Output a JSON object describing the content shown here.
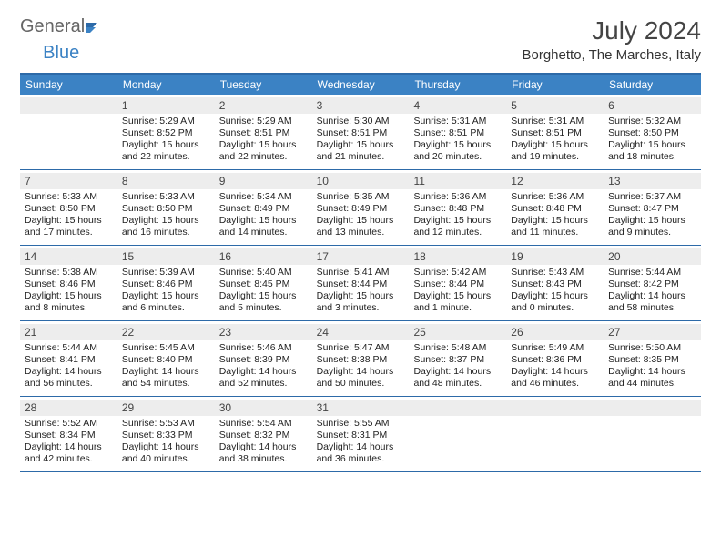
{
  "branding": {
    "part1": "General",
    "part2": "Blue"
  },
  "title": "July 2024",
  "location": "Borghetto, The Marches, Italy",
  "colors": {
    "header_bg": "#3b82c4",
    "header_text": "#ffffff",
    "band_bg": "#ededed",
    "rule": "#2d6aa8",
    "body_text": "#222222",
    "page_bg": "#ffffff"
  },
  "dow": [
    "Sunday",
    "Monday",
    "Tuesday",
    "Wednesday",
    "Thursday",
    "Friday",
    "Saturday"
  ],
  "weeks": [
    [
      {
        "n": "",
        "sr": "",
        "ss": "",
        "dl": ""
      },
      {
        "n": "1",
        "sr": "Sunrise: 5:29 AM",
        "ss": "Sunset: 8:52 PM",
        "dl": "Daylight: 15 hours and 22 minutes."
      },
      {
        "n": "2",
        "sr": "Sunrise: 5:29 AM",
        "ss": "Sunset: 8:51 PM",
        "dl": "Daylight: 15 hours and 22 minutes."
      },
      {
        "n": "3",
        "sr": "Sunrise: 5:30 AM",
        "ss": "Sunset: 8:51 PM",
        "dl": "Daylight: 15 hours and 21 minutes."
      },
      {
        "n": "4",
        "sr": "Sunrise: 5:31 AM",
        "ss": "Sunset: 8:51 PM",
        "dl": "Daylight: 15 hours and 20 minutes."
      },
      {
        "n": "5",
        "sr": "Sunrise: 5:31 AM",
        "ss": "Sunset: 8:51 PM",
        "dl": "Daylight: 15 hours and 19 minutes."
      },
      {
        "n": "6",
        "sr": "Sunrise: 5:32 AM",
        "ss": "Sunset: 8:50 PM",
        "dl": "Daylight: 15 hours and 18 minutes."
      }
    ],
    [
      {
        "n": "7",
        "sr": "Sunrise: 5:33 AM",
        "ss": "Sunset: 8:50 PM",
        "dl": "Daylight: 15 hours and 17 minutes."
      },
      {
        "n": "8",
        "sr": "Sunrise: 5:33 AM",
        "ss": "Sunset: 8:50 PM",
        "dl": "Daylight: 15 hours and 16 minutes."
      },
      {
        "n": "9",
        "sr": "Sunrise: 5:34 AM",
        "ss": "Sunset: 8:49 PM",
        "dl": "Daylight: 15 hours and 14 minutes."
      },
      {
        "n": "10",
        "sr": "Sunrise: 5:35 AM",
        "ss": "Sunset: 8:49 PM",
        "dl": "Daylight: 15 hours and 13 minutes."
      },
      {
        "n": "11",
        "sr": "Sunrise: 5:36 AM",
        "ss": "Sunset: 8:48 PM",
        "dl": "Daylight: 15 hours and 12 minutes."
      },
      {
        "n": "12",
        "sr": "Sunrise: 5:36 AM",
        "ss": "Sunset: 8:48 PM",
        "dl": "Daylight: 15 hours and 11 minutes."
      },
      {
        "n": "13",
        "sr": "Sunrise: 5:37 AM",
        "ss": "Sunset: 8:47 PM",
        "dl": "Daylight: 15 hours and 9 minutes."
      }
    ],
    [
      {
        "n": "14",
        "sr": "Sunrise: 5:38 AM",
        "ss": "Sunset: 8:46 PM",
        "dl": "Daylight: 15 hours and 8 minutes."
      },
      {
        "n": "15",
        "sr": "Sunrise: 5:39 AM",
        "ss": "Sunset: 8:46 PM",
        "dl": "Daylight: 15 hours and 6 minutes."
      },
      {
        "n": "16",
        "sr": "Sunrise: 5:40 AM",
        "ss": "Sunset: 8:45 PM",
        "dl": "Daylight: 15 hours and 5 minutes."
      },
      {
        "n": "17",
        "sr": "Sunrise: 5:41 AM",
        "ss": "Sunset: 8:44 PM",
        "dl": "Daylight: 15 hours and 3 minutes."
      },
      {
        "n": "18",
        "sr": "Sunrise: 5:42 AM",
        "ss": "Sunset: 8:44 PM",
        "dl": "Daylight: 15 hours and 1 minute."
      },
      {
        "n": "19",
        "sr": "Sunrise: 5:43 AM",
        "ss": "Sunset: 8:43 PM",
        "dl": "Daylight: 15 hours and 0 minutes."
      },
      {
        "n": "20",
        "sr": "Sunrise: 5:44 AM",
        "ss": "Sunset: 8:42 PM",
        "dl": "Daylight: 14 hours and 58 minutes."
      }
    ],
    [
      {
        "n": "21",
        "sr": "Sunrise: 5:44 AM",
        "ss": "Sunset: 8:41 PM",
        "dl": "Daylight: 14 hours and 56 minutes."
      },
      {
        "n": "22",
        "sr": "Sunrise: 5:45 AM",
        "ss": "Sunset: 8:40 PM",
        "dl": "Daylight: 14 hours and 54 minutes."
      },
      {
        "n": "23",
        "sr": "Sunrise: 5:46 AM",
        "ss": "Sunset: 8:39 PM",
        "dl": "Daylight: 14 hours and 52 minutes."
      },
      {
        "n": "24",
        "sr": "Sunrise: 5:47 AM",
        "ss": "Sunset: 8:38 PM",
        "dl": "Daylight: 14 hours and 50 minutes."
      },
      {
        "n": "25",
        "sr": "Sunrise: 5:48 AM",
        "ss": "Sunset: 8:37 PM",
        "dl": "Daylight: 14 hours and 48 minutes."
      },
      {
        "n": "26",
        "sr": "Sunrise: 5:49 AM",
        "ss": "Sunset: 8:36 PM",
        "dl": "Daylight: 14 hours and 46 minutes."
      },
      {
        "n": "27",
        "sr": "Sunrise: 5:50 AM",
        "ss": "Sunset: 8:35 PM",
        "dl": "Daylight: 14 hours and 44 minutes."
      }
    ],
    [
      {
        "n": "28",
        "sr": "Sunrise: 5:52 AM",
        "ss": "Sunset: 8:34 PM",
        "dl": "Daylight: 14 hours and 42 minutes."
      },
      {
        "n": "29",
        "sr": "Sunrise: 5:53 AM",
        "ss": "Sunset: 8:33 PM",
        "dl": "Daylight: 14 hours and 40 minutes."
      },
      {
        "n": "30",
        "sr": "Sunrise: 5:54 AM",
        "ss": "Sunset: 8:32 PM",
        "dl": "Daylight: 14 hours and 38 minutes."
      },
      {
        "n": "31",
        "sr": "Sunrise: 5:55 AM",
        "ss": "Sunset: 8:31 PM",
        "dl": "Daylight: 14 hours and 36 minutes."
      },
      {
        "n": "",
        "sr": "",
        "ss": "",
        "dl": ""
      },
      {
        "n": "",
        "sr": "",
        "ss": "",
        "dl": ""
      },
      {
        "n": "",
        "sr": "",
        "ss": "",
        "dl": ""
      }
    ]
  ]
}
